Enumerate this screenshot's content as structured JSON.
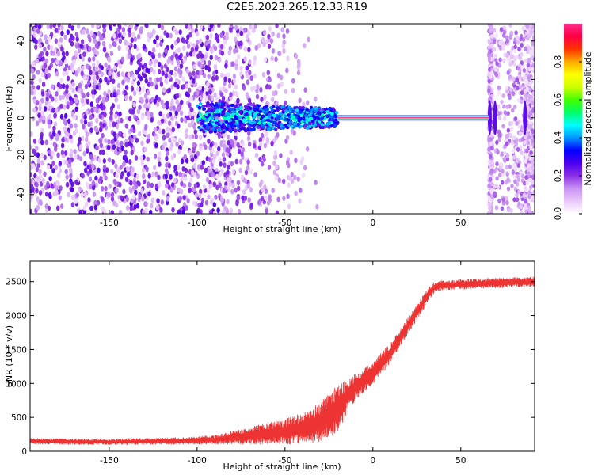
{
  "figure_title": "C2E5.2023.265.12.33.R19",
  "chart_data": [
    {
      "type": "heatmap",
      "xlabel": "Height of straight line (km)",
      "ylabel": "Frequency (Hz)",
      "xlim": [
        -195,
        92
      ],
      "ylim": [
        -50,
        49
      ],
      "xticks": [
        -150,
        -100,
        -50,
        0,
        50
      ],
      "yticks": [
        -40,
        -20,
        0,
        20,
        40
      ],
      "colorbar": {
        "label": "Normalized spectral amplitude",
        "range": [
          0,
          1
        ],
        "ticks": [
          0.0,
          0.2,
          0.4,
          0.6,
          0.8
        ],
        "colors": [
          "#ffffff",
          "#e9c8fb",
          "#c893f2",
          "#8b2fe6",
          "#4b00ee",
          "#0000ff",
          "#0096ff",
          "#00ffff",
          "#00ff66",
          "#44ff00",
          "#ccff00",
          "#ffff00",
          "#ffaa00",
          "#ff3300",
          "#ff0044",
          "#ff2a8a"
        ]
      },
      "features": {
        "noise_region_x": [
          -195,
          -88
        ],
        "noise_fading_x": [
          -88,
          -30
        ],
        "broadband_band_x": [
          -100,
          -20
        ],
        "broadband_band_freq_halfwidth": 8,
        "carrier_line_x": [
          -20,
          66
        ],
        "carrier_freq": 0,
        "carrier_peak_amplitude": 1.0,
        "edge_bursts_x": [
          [
            66,
            68
          ],
          [
            69,
            86
          ],
          [
            86,
            92
          ]
        ]
      },
      "grid": false
    },
    {
      "type": "line",
      "xlabel": "Height of straight line (km)",
      "ylabel": "SNR (10 * v/v)",
      "xlim": [
        -195,
        92
      ],
      "ylim": [
        0,
        2800
      ],
      "xticks": [
        -150,
        -100,
        -50,
        0,
        50
      ],
      "yticks": [
        0,
        500,
        1000,
        1500,
        2000,
        2500
      ],
      "series": [
        {
          "color": "#ee3333",
          "x": [
            -195,
            -180,
            -165,
            -150,
            -135,
            -120,
            -105,
            -90,
            -80,
            -70,
            -60,
            -50,
            -40,
            -30,
            -25,
            -20,
            -15,
            -10,
            -5,
            0,
            5,
            10,
            15,
            20,
            25,
            30,
            35,
            40,
            45,
            50,
            60,
            70,
            80,
            92
          ],
          "y": [
            150,
            145,
            140,
            140,
            145,
            150,
            155,
            170,
            200,
            230,
            260,
            290,
            340,
            420,
            520,
            620,
            800,
            950,
            1050,
            1150,
            1300,
            1450,
            1650,
            1850,
            2050,
            2250,
            2420,
            2450,
            2450,
            2460,
            2470,
            2480,
            2490,
            2500
          ],
          "noise_amplitude": [
            90,
            90,
            90,
            90,
            95,
            100,
            110,
            140,
            200,
            260,
            320,
            380,
            460,
            600,
            700,
            750,
            500,
            400,
            350,
            350,
            320,
            300,
            280,
            260,
            240,
            220,
            180,
            150,
            150,
            150,
            150,
            150,
            150,
            150
          ]
        }
      ],
      "grid": false
    }
  ]
}
